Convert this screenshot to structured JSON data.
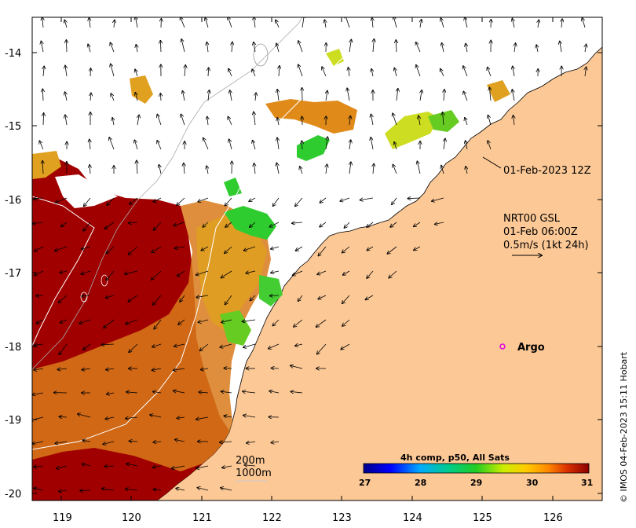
{
  "map": {
    "x_ticks": [
      "119",
      "120",
      "121",
      "122",
      "123",
      "124",
      "125",
      "126"
    ],
    "y_ticks": [
      "-14",
      "-15",
      "-16",
      "-17",
      "-18",
      "-19",
      "-20"
    ],
    "annotations": {
      "track_time": "01-Feb-2023 12Z",
      "current_line1": "NRT00 GSL",
      "current_line2": "01-Feb 06:00Z",
      "current_line3": "0.5m/s (1kt 24h)",
      "argo_label": "Argo",
      "depth_200": "200m",
      "depth_1000": "1000m"
    },
    "colorbar": {
      "title": "4h comp, p50, All Sats",
      "ticks": [
        "27",
        "28",
        "29",
        "30",
        "31"
      ]
    },
    "credit": "© IMOS 04-Feb-2023 15:11 Hobart",
    "colors": {
      "land": "#fcc896",
      "warm_sst": "#a00000",
      "orange_sst": "#d2691e",
      "green_sst": "#2ecc2e",
      "argo": "#e000e0"
    }
  }
}
